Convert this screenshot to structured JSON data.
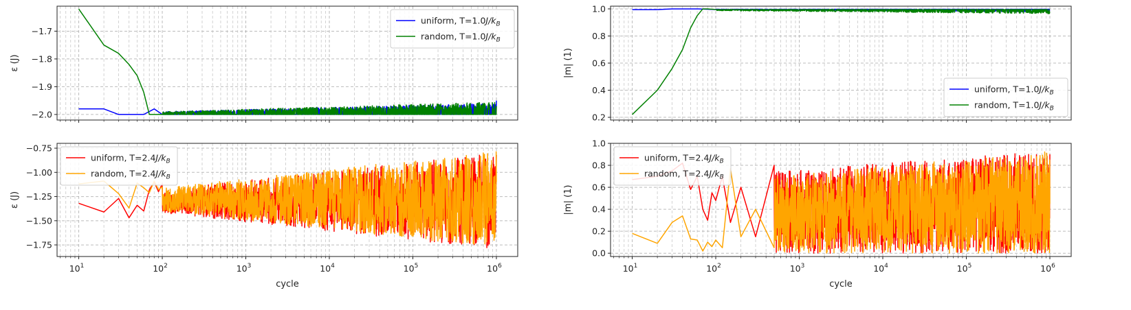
{
  "figure": {
    "background": "#ffffff"
  },
  "chart_data": [
    {
      "id": "energy_T1",
      "type": "line",
      "xscale": "log",
      "xlim": [
        5.5,
        1800000
      ],
      "ylim": [
        -2.02,
        -1.61
      ],
      "yticks": [
        -2.0,
        -1.9,
        -1.8,
        -1.7
      ],
      "ytick_labels": [
        "−2.0",
        "−1.9",
        "−1.8",
        "−1.7"
      ],
      "xtick_labels_visible": false,
      "ylabel": "ε (J)",
      "xlabel": "",
      "grid": true,
      "legend_position": "top-right",
      "series": [
        {
          "name": "uniform, T=1.0J/k_B",
          "label_main": "uniform, T=1.0",
          "label_unit": "J/k",
          "label_sub": "B",
          "color": "#0000ff",
          "x": [
            10,
            20,
            30,
            60,
            80,
            100
          ],
          "y": [
            -1.98,
            -1.98,
            -2.0,
            -2.0,
            -1.98,
            -2.0
          ],
          "noise": {
            "x_start": 100,
            "x_end": 1000000,
            "baseline": -2.0,
            "spread_start": 0.01,
            "spread_end": 0.04,
            "end_y": -1.95,
            "seed": 11
          }
        },
        {
          "name": "random, T=1.0J/k_B",
          "label_main": "random, T=1.0",
          "label_unit": "J/k",
          "label_sub": "B",
          "color": "#008000",
          "x": [
            10,
            20,
            30,
            40,
            50,
            60,
            70,
            80,
            100
          ],
          "y": [
            -1.62,
            -1.75,
            -1.78,
            -1.82,
            -1.86,
            -1.92,
            -2.0,
            -2.0,
            -2.0
          ],
          "noise": {
            "x_start": 100,
            "x_end": 1000000,
            "baseline": -2.0,
            "spread_start": 0.01,
            "spread_end": 0.045,
            "end_y": -1.97,
            "seed": 23
          }
        }
      ]
    },
    {
      "id": "mag_T1",
      "type": "line",
      "xscale": "log",
      "xlim": [
        5.5,
        1800000
      ],
      "ylim": [
        0.18,
        1.02
      ],
      "yticks": [
        0.2,
        0.4,
        0.6,
        0.8,
        1.0
      ],
      "ytick_labels": [
        "0.2",
        "0.4",
        "0.6",
        "0.8",
        "1.0"
      ],
      "xtick_labels_visible": false,
      "ylabel": "|m| (1)",
      "xlabel": "",
      "grid": true,
      "legend_position": "lower-right",
      "series": [
        {
          "name": "uniform, T=1.0J/k_B",
          "label_main": "uniform, T=1.0",
          "label_unit": "J/k",
          "label_sub": "B",
          "color": "#0000ff",
          "x": [
            10,
            20,
            30,
            40,
            60,
            100
          ],
          "y": [
            0.995,
            0.995,
            1.0,
            1.0,
            1.0,
            0.995
          ],
          "noise": {
            "x_start": 100,
            "x_end": 1000000,
            "baseline": 0.997,
            "spread_start": -0.005,
            "spread_end": -0.02,
            "end_y": 0.985,
            "seed": 31
          }
        },
        {
          "name": "random, T=1.0J/k_B",
          "label_main": "random, T=1.0",
          "label_unit": "J/k",
          "label_sub": "B",
          "color": "#008000",
          "x": [
            10,
            20,
            30,
            40,
            50,
            60,
            70,
            80,
            100
          ],
          "y": [
            0.22,
            0.4,
            0.56,
            0.7,
            0.86,
            0.95,
            1.0,
            1.0,
            0.995
          ],
          "noise": {
            "x_start": 100,
            "x_end": 1000000,
            "baseline": 0.995,
            "spread_start": -0.008,
            "spread_end": -0.03,
            "end_y": 0.98,
            "seed": 47
          }
        }
      ]
    },
    {
      "id": "energy_T24",
      "type": "line",
      "xscale": "log",
      "xlim": [
        5.5,
        1800000
      ],
      "ylim": [
        -1.87,
        -0.7
      ],
      "yticks": [
        -1.75,
        -1.5,
        -1.25,
        -1.0,
        -0.75
      ],
      "ytick_labels": [
        "−1.75",
        "−1.50",
        "−1.25",
        "−1.00",
        "−0.75"
      ],
      "xticks": [
        10,
        100,
        1000,
        10000,
        100000,
        1000000
      ],
      "xtick_exponents": [
        "1",
        "2",
        "3",
        "4",
        "5",
        "6"
      ],
      "xtick_base": "10",
      "xtick_labels_visible": true,
      "ylabel": "ε (J)",
      "xlabel": "cycle",
      "grid": true,
      "legend_position": "top-left",
      "series": [
        {
          "name": "uniform, T=2.4J/k_B",
          "label_main": "uniform, T=2.4",
          "label_unit": "J/k",
          "label_sub": "B",
          "color": "#ff0000",
          "x": [
            10,
            20,
            30,
            40,
            50,
            60,
            70,
            80,
            90,
            100
          ],
          "y": [
            -1.32,
            -1.41,
            -1.27,
            -1.47,
            -1.34,
            -1.4,
            -1.18,
            -1.1,
            -1.2,
            -1.12
          ],
          "noise": {
            "x_start": 100,
            "x_end": 1000000,
            "center": -1.3,
            "half_start": 0.12,
            "half_end": 0.5,
            "end_y": -0.82,
            "seed": 53
          }
        },
        {
          "name": "random, T=2.4J/k_B",
          "label_main": "random, T=2.4",
          "label_unit": "J/k",
          "label_sub": "B",
          "color": "#ffa500",
          "x": [
            10,
            20,
            30,
            40,
            50,
            60,
            70,
            80,
            90,
            100
          ],
          "y": [
            -1.12,
            -1.09,
            -1.22,
            -1.37,
            -1.11,
            -1.16,
            -1.21,
            -1.09,
            -1.18,
            -1.15
          ],
          "noise": {
            "x_start": 100,
            "x_end": 1000000,
            "center": -1.28,
            "half_start": 0.12,
            "half_end": 0.5,
            "end_y": -1.1,
            "seed": 67
          }
        }
      ]
    },
    {
      "id": "mag_T24",
      "type": "line",
      "xscale": "log",
      "xlim": [
        5.5,
        1800000
      ],
      "ylim": [
        -0.03,
        1.0
      ],
      "yticks": [
        0.0,
        0.2,
        0.4,
        0.6,
        0.8,
        1.0
      ],
      "ytick_labels": [
        "0.0",
        "0.2",
        "0.4",
        "0.6",
        "0.8",
        "1.0"
      ],
      "xticks": [
        10,
        100,
        1000,
        10000,
        100000,
        1000000
      ],
      "xtick_exponents": [
        "1",
        "2",
        "3",
        "4",
        "5",
        "6"
      ],
      "xtick_base": "10",
      "xtick_labels_visible": true,
      "ylabel": "|m| (1)",
      "xlabel": "cycle",
      "grid": true,
      "legend_position": "top-left",
      "series": [
        {
          "name": "uniform, T=2.4J/k_B",
          "label_main": "uniform, T=2.4",
          "label_unit": "J/k",
          "label_sub": "B",
          "color": "#ff0000",
          "x": [
            10,
            20,
            30,
            40,
            50,
            60,
            70,
            80,
            90,
            100,
            120,
            150,
            200,
            300,
            500
          ],
          "y": [
            0.67,
            0.7,
            0.75,
            0.82,
            0.58,
            0.7,
            0.4,
            0.3,
            0.55,
            0.48,
            0.7,
            0.28,
            0.6,
            0.15,
            0.8
          ],
          "noise": {
            "x_start": 500,
            "x_end": 1000000,
            "mode": "band",
            "low": 0.0,
            "high_start": 0.75,
            "high_end": 0.93,
            "end_y": 0.9,
            "seed": 71
          }
        },
        {
          "name": "random, T=2.4J/k_B",
          "label_main": "random, T=2.4",
          "label_unit": "J/k",
          "label_sub": "B",
          "color": "#ffa500",
          "x": [
            10,
            20,
            30,
            40,
            50,
            60,
            70,
            80,
            90,
            100,
            120,
            150,
            200,
            300,
            500
          ],
          "y": [
            0.18,
            0.09,
            0.28,
            0.34,
            0.13,
            0.12,
            0.02,
            0.1,
            0.06,
            0.12,
            0.05,
            0.77,
            0.15,
            0.4,
            0.05
          ],
          "noise": {
            "x_start": 500,
            "x_end": 1000000,
            "mode": "band",
            "low": 0.0,
            "high_start": 0.7,
            "high_end": 0.93,
            "end_y": 0.45,
            "seed": 89
          }
        }
      ]
    }
  ]
}
